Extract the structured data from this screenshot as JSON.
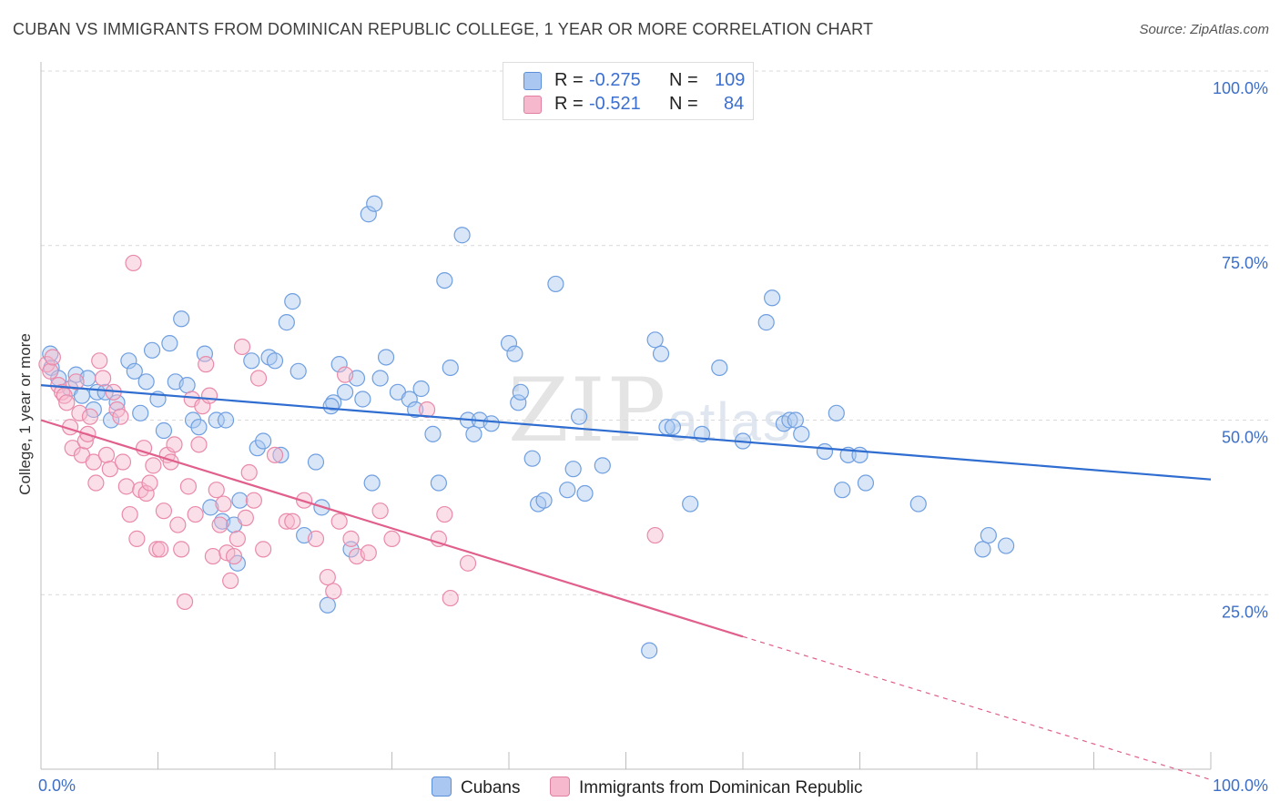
{
  "title": "CUBAN VS IMMIGRANTS FROM DOMINICAN REPUBLIC COLLEGE, 1 YEAR OR MORE CORRELATION CHART",
  "source": "Source: ZipAtlas.com",
  "watermark": {
    "main": "ZIP",
    "small": "atlas"
  },
  "legend": {
    "r_label": "R =",
    "n_label": "N =",
    "rows": [
      {
        "r": "-0.275",
        "n": "109",
        "color": "#a9c7f0",
        "border": "#5b8fd8"
      },
      {
        "r": "-0.521",
        "n": "84",
        "color": "#f6b8cc",
        "border": "#e07fa0"
      }
    ]
  },
  "bottom_legend": [
    "Cubans",
    "Immigrants from Dominican Republic"
  ],
  "chart_data": {
    "type": "scatter",
    "xlabel": "",
    "ylabel": "College, 1 year or more",
    "xlim": [
      0,
      100
    ],
    "ylim": [
      0,
      100
    ],
    "x_tick_labels": [
      "0.0%",
      "100.0%"
    ],
    "y_tick_labels": [
      "100.0%",
      "75.0%",
      "50.0%",
      "25.0%"
    ],
    "y_ticks": [
      100,
      75,
      50,
      25
    ],
    "grid": "horizontal dashed",
    "series": [
      {
        "name": "Cubans",
        "color": "#6f9fe0",
        "fill": "#a9c7f0",
        "trend": {
          "x0": 0,
          "y0": 55.0,
          "x1": 100,
          "y1": 41.5,
          "color": "#2f6dd0"
        },
        "points": [
          [
            0.8,
            59.5
          ],
          [
            0.9,
            57.5
          ],
          [
            1.5,
            56.0
          ],
          [
            2.5,
            54.5
          ],
          [
            3.0,
            56.5
          ],
          [
            3.5,
            53.5
          ],
          [
            4.0,
            56.0
          ],
          [
            4.5,
            51.5
          ],
          [
            4.8,
            54.0
          ],
          [
            5.5,
            54.0
          ],
          [
            6.0,
            50.0
          ],
          [
            6.5,
            52.5
          ],
          [
            7.5,
            58.5
          ],
          [
            8.0,
            57.0
          ],
          [
            8.5,
            51.0
          ],
          [
            9.0,
            55.5
          ],
          [
            9.5,
            60.0
          ],
          [
            10.0,
            53.0
          ],
          [
            10.5,
            48.5
          ],
          [
            11.0,
            61.0
          ],
          [
            11.5,
            55.5
          ],
          [
            12.0,
            64.5
          ],
          [
            12.5,
            55.0
          ],
          [
            13.0,
            50.0
          ],
          [
            13.5,
            49.0
          ],
          [
            14.0,
            59.5
          ],
          [
            14.5,
            37.5
          ],
          [
            15.0,
            50.0
          ],
          [
            15.5,
            35.5
          ],
          [
            16.5,
            35.0
          ],
          [
            16.8,
            29.5
          ],
          [
            17.0,
            38.5
          ],
          [
            18.0,
            58.5
          ],
          [
            18.5,
            46.0
          ],
          [
            19.0,
            47.0
          ],
          [
            19.5,
            59.0
          ],
          [
            20.0,
            58.5
          ],
          [
            20.5,
            45.0
          ],
          [
            21.0,
            64.0
          ],
          [
            21.5,
            67.0
          ],
          [
            22.0,
            57.0
          ],
          [
            22.5,
            33.5
          ],
          [
            23.5,
            44.0
          ],
          [
            24.0,
            37.5
          ],
          [
            24.5,
            23.5
          ],
          [
            25.0,
            52.5
          ],
          [
            25.5,
            58.0
          ],
          [
            26.0,
            54.0
          ],
          [
            26.5,
            31.5
          ],
          [
            27.0,
            56.0
          ],
          [
            27.5,
            53.0
          ],
          [
            28.0,
            79.5
          ],
          [
            28.3,
            41.0
          ],
          [
            28.5,
            81.0
          ],
          [
            29.0,
            56.0
          ],
          [
            29.5,
            59.0
          ],
          [
            30.5,
            54.0
          ],
          [
            31.5,
            53.0
          ],
          [
            32.0,
            51.5
          ],
          [
            32.5,
            54.5
          ],
          [
            33.5,
            48.0
          ],
          [
            34.0,
            41.0
          ],
          [
            34.5,
            70.0
          ],
          [
            35.0,
            57.5
          ],
          [
            36.0,
            76.5
          ],
          [
            36.5,
            50.0
          ],
          [
            37.0,
            48.0
          ],
          [
            37.5,
            50.0
          ],
          [
            38.5,
            49.5
          ],
          [
            40.0,
            61.0
          ],
          [
            40.5,
            59.5
          ],
          [
            40.8,
            52.5
          ],
          [
            41.0,
            54.0
          ],
          [
            42.0,
            44.5
          ],
          [
            42.5,
            38.0
          ],
          [
            43.0,
            38.5
          ],
          [
            44.0,
            69.5
          ],
          [
            45.5,
            43.0
          ],
          [
            46.5,
            39.5
          ],
          [
            48.0,
            43.5
          ],
          [
            52.0,
            17.0
          ],
          [
            52.5,
            61.5
          ],
          [
            53.0,
            59.5
          ],
          [
            53.5,
            49.0
          ],
          [
            54.0,
            49.0
          ],
          [
            55.5,
            38.0
          ],
          [
            56.5,
            48.0
          ],
          [
            58.0,
            57.5
          ],
          [
            60.0,
            47.0
          ],
          [
            62.0,
            64.0
          ],
          [
            62.5,
            67.5
          ],
          [
            63.5,
            49.5
          ],
          [
            64.0,
            50.0
          ],
          [
            64.5,
            50.0
          ],
          [
            65.0,
            48.0
          ],
          [
            67.0,
            45.5
          ],
          [
            68.0,
            51.0
          ],
          [
            68.5,
            40.0
          ],
          [
            69.0,
            45.0
          ],
          [
            70.0,
            45.0
          ],
          [
            70.5,
            41.0
          ],
          [
            75.0,
            38.0
          ],
          [
            80.5,
            31.5
          ],
          [
            81.0,
            33.5
          ],
          [
            82.5,
            32.0
          ],
          [
            15.8,
            50.0
          ],
          [
            24.8,
            52.0
          ],
          [
            45.0,
            40.0
          ],
          [
            46.0,
            50.5
          ]
        ]
      },
      {
        "name": "Immigrants from Dominican Republic",
        "color": "#e98aaa",
        "fill": "#f6b8cc",
        "trend": {
          "x0": 0,
          "y0": 50.0,
          "x1": 60,
          "y1": 19.0,
          "color": "#e05f8c",
          "dash_to_x": 100,
          "dash_to_y": -1.5
        },
        "points": [
          [
            0.5,
            58.0
          ],
          [
            0.8,
            57.0
          ],
          [
            1.0,
            59.0
          ],
          [
            1.5,
            55.0
          ],
          [
            1.8,
            54.0
          ],
          [
            2.0,
            53.5
          ],
          [
            2.2,
            52.5
          ],
          [
            2.5,
            49.0
          ],
          [
            2.7,
            46.0
          ],
          [
            3.0,
            55.5
          ],
          [
            3.3,
            51.0
          ],
          [
            3.5,
            45.0
          ],
          [
            3.8,
            47.0
          ],
          [
            4.0,
            48.0
          ],
          [
            4.2,
            50.5
          ],
          [
            4.5,
            44.0
          ],
          [
            4.7,
            41.0
          ],
          [
            5.0,
            58.5
          ],
          [
            5.3,
            56.0
          ],
          [
            5.6,
            45.0
          ],
          [
            5.9,
            43.0
          ],
          [
            6.2,
            54.0
          ],
          [
            6.5,
            51.5
          ],
          [
            6.8,
            50.5
          ],
          [
            7.0,
            44.0
          ],
          [
            7.3,
            40.5
          ],
          [
            7.6,
            36.5
          ],
          [
            7.9,
            72.5
          ],
          [
            8.2,
            33.0
          ],
          [
            8.5,
            40.0
          ],
          [
            8.8,
            46.0
          ],
          [
            9.0,
            39.5
          ],
          [
            9.3,
            41.0
          ],
          [
            9.6,
            43.5
          ],
          [
            9.9,
            31.5
          ],
          [
            10.2,
            31.5
          ],
          [
            10.5,
            37.0
          ],
          [
            10.8,
            45.0
          ],
          [
            11.1,
            44.0
          ],
          [
            11.4,
            46.5
          ],
          [
            11.7,
            35.0
          ],
          [
            12.0,
            31.5
          ],
          [
            12.3,
            24.0
          ],
          [
            12.6,
            40.5
          ],
          [
            12.9,
            53.0
          ],
          [
            13.2,
            36.5
          ],
          [
            13.5,
            46.5
          ],
          [
            13.8,
            52.0
          ],
          [
            14.1,
            58.0
          ],
          [
            14.4,
            53.5
          ],
          [
            14.7,
            30.5
          ],
          [
            15.0,
            40.0
          ],
          [
            15.3,
            35.0
          ],
          [
            15.6,
            38.0
          ],
          [
            15.9,
            31.0
          ],
          [
            16.2,
            27.0
          ],
          [
            16.5,
            30.5
          ],
          [
            16.8,
            33.0
          ],
          [
            17.2,
            60.5
          ],
          [
            17.5,
            36.0
          ],
          [
            17.8,
            42.5
          ],
          [
            18.2,
            38.5
          ],
          [
            18.6,
            56.0
          ],
          [
            19.0,
            31.5
          ],
          [
            20.0,
            45.0
          ],
          [
            21.0,
            35.5
          ],
          [
            21.5,
            35.5
          ],
          [
            22.5,
            38.5
          ],
          [
            23.5,
            33.0
          ],
          [
            24.5,
            27.5
          ],
          [
            25.0,
            25.5
          ],
          [
            25.5,
            35.5
          ],
          [
            26.0,
            56.5
          ],
          [
            26.5,
            33.0
          ],
          [
            27.0,
            30.5
          ],
          [
            28.0,
            31.0
          ],
          [
            29.0,
            37.0
          ],
          [
            30.0,
            33.0
          ],
          [
            33.0,
            51.5
          ],
          [
            34.0,
            33.0
          ],
          [
            34.5,
            36.5
          ],
          [
            35.0,
            24.5
          ],
          [
            36.5,
            29.5
          ],
          [
            52.5,
            33.5
          ]
        ]
      }
    ]
  }
}
